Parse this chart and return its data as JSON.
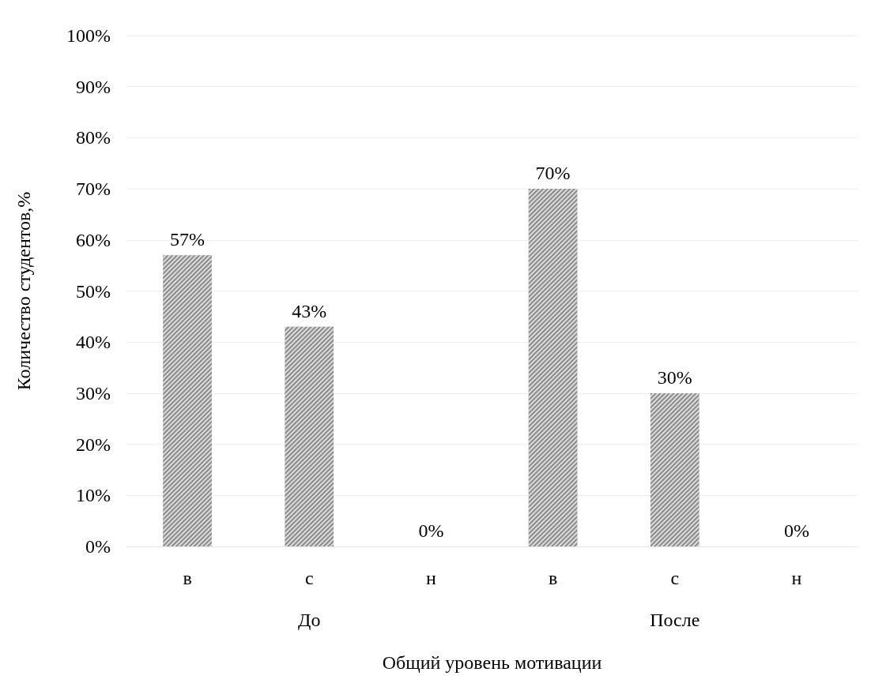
{
  "chart_data": {
    "type": "bar",
    "xlabel": "Общий уровень мотивации",
    "ylabel": "Количество студентов,%",
    "categories": [
      "в",
      "с",
      "н",
      "в",
      "с",
      "н"
    ],
    "annotations": [
      "До",
      "После"
    ],
    "series": [
      {
        "color": "#8a8a8a",
        "values": [
          57,
          43,
          0,
          70,
          30,
          0
        ],
        "value_labels": [
          "57%",
          "43%",
          "0%",
          "70%",
          "30%",
          "0%"
        ]
      }
    ],
    "ylim": [
      0,
      100
    ],
    "yticks": [
      {
        "value": 0,
        "label": "0%"
      },
      {
        "value": 10,
        "label": "10%"
      },
      {
        "value": 20,
        "label": "20%"
      },
      {
        "value": 30,
        "label": "30%"
      },
      {
        "value": 40,
        "label": "40%"
      },
      {
        "value": 50,
        "label": "50%"
      },
      {
        "value": 60,
        "label": "60%"
      },
      {
        "value": 70,
        "label": "70%"
      },
      {
        "value": 80,
        "label": "80%"
      },
      {
        "value": 90,
        "label": "90%"
      },
      {
        "value": 100,
        "label": "100%"
      }
    ],
    "grid": "y"
  }
}
